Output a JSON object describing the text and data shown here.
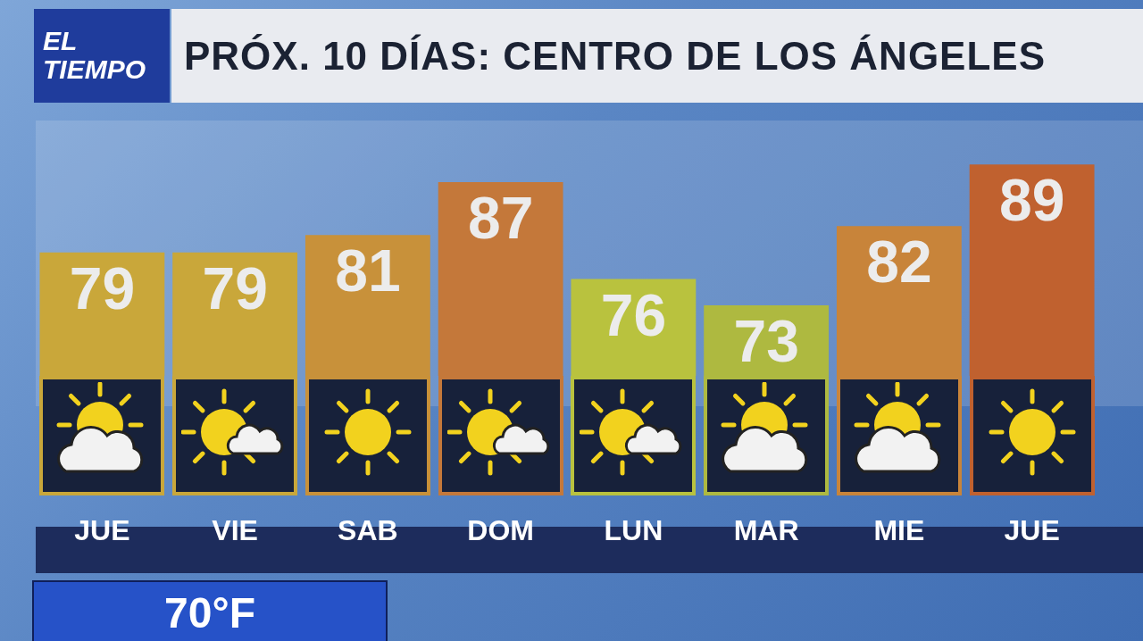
{
  "chart_data": {
    "type": "bar",
    "title": "PRÓX. 10 DÍAS: CENTRO DE LOS ÁNGELES",
    "categories": [
      "JUE",
      "VIE",
      "SAB",
      "DOM",
      "LUN",
      "MAR",
      "MIE",
      "JUE"
    ],
    "values": [
      79,
      79,
      81,
      87,
      76,
      73,
      82,
      89
    ],
    "colors": [
      "#c9a73a",
      "#c9a73a",
      "#c8913a",
      "#c4783a",
      "#b9c23e",
      "#aeb940",
      "#c8843a",
      "#c0612f"
    ],
    "data_labels": true,
    "annotations": [
      "EL TIEMPO",
      "70°F"
    ]
  }
}
